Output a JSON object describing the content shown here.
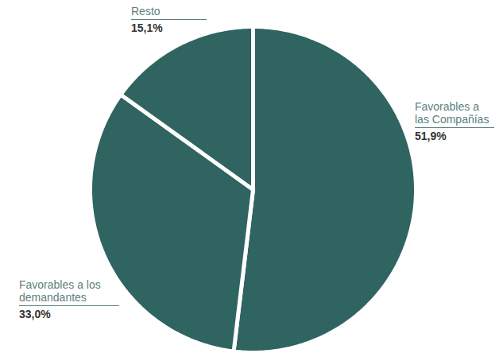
{
  "chart_data": {
    "type": "pie",
    "categories": [
      "Favorables a las Compañías",
      "Favorables a los demandantes",
      "Resto"
    ],
    "values": [
      51.9,
      33.0,
      15.1
    ],
    "value_labels": [
      "51,9%",
      "33,0%",
      "15,1%"
    ],
    "color": "#2f6461",
    "data_labels": true
  }
}
